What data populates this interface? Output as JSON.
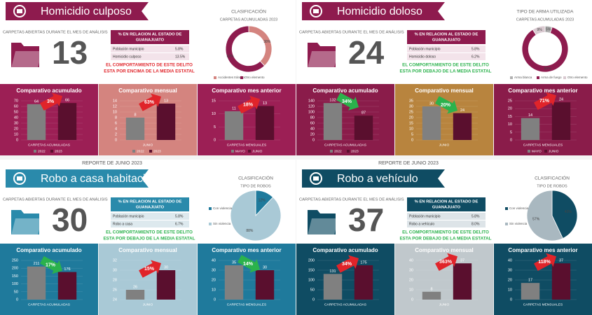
{
  "report_label": "REPORTE DE JUNIO 2023",
  "sections": [
    {
      "title": "Homicidio culposo",
      "theme_color": "#8e1b4e",
      "open_label": "CARPETAS ABIERTAS DURANTE EL MES DE ANÁLISIS",
      "count": 13,
      "table": {
        "header": [
          "% EN RELACION AL ESTADO DE",
          "GUANAJUATO"
        ],
        "rows": [
          [
            "Población municipio",
            "5.8%"
          ],
          [
            "Homicidio culposo",
            "13.5%"
          ]
        ],
        "row_color": "#f3e3ea"
      },
      "statement": [
        "EL COMPORTAMIENTO DE ESTE DELITO",
        "ESTA POR ENCIMA DE LA MEDIA ESTATAL"
      ],
      "statement_color": "#e0242a",
      "pie": {
        "type": "pie",
        "donut": true,
        "title": "CLASIFICACIÓN",
        "subtitle": "CARPETAS ACUMULADAS 2023",
        "categories": [
          "Accidentes tránsito",
          "Otro elemento"
        ],
        "values": [
          38,
          62
        ],
        "value_labels": [
          "38%",
          "62%"
        ],
        "colors": [
          "#d4847f",
          "#8e1b4e"
        ],
        "legend": "bottom"
      },
      "bars": [
        {
          "type": "bar",
          "title": "Comparativo acumulado",
          "panel_color": "#9c1f55",
          "categories": [
            "2022",
            "2023"
          ],
          "values": [
            64,
            66
          ],
          "colors": [
            "#808080",
            "#5a0f2e"
          ],
          "ylim": [
            0,
            70
          ],
          "yticks": [
            0,
            10,
            20,
            30,
            40,
            50,
            60,
            70
          ],
          "xlabel": "CARPETAS ACUMULADAS",
          "annotation": "3%",
          "annotation_color": "#e0242a"
        },
        {
          "type": "bar",
          "title": "Comparativo mensual",
          "panel_color": "#d4847f",
          "categories": [
            "2022",
            "2023"
          ],
          "values": [
            8,
            13
          ],
          "colors": [
            "#808080",
            "#5a0f2e"
          ],
          "ylim": [
            0,
            14
          ],
          "yticks": [
            0,
            2,
            4,
            6,
            8,
            10,
            12,
            14
          ],
          "xlabel": "JUNIO",
          "annotation": "63%",
          "annotation_color": "#e0242a"
        },
        {
          "type": "bar",
          "title": "Comparativo mes anterior",
          "panel_color": "#9c1f55",
          "categories": [
            "MAYO",
            "JUNIO"
          ],
          "values": [
            11,
            13
          ],
          "colors": [
            "#808080",
            "#5a0f2e"
          ],
          "ylim": [
            0,
            15
          ],
          "yticks": [
            0,
            5,
            10,
            15
          ],
          "xlabel": "CARPETAS MENSUALES",
          "annotation": "18%",
          "annotation_color": "#e0242a"
        }
      ]
    },
    {
      "title": "Homicidio doloso",
      "theme_color": "#8e1b4e",
      "open_label": "CARPETAS ABIERTAS DURANTE EL MES DE ANÁLISIS",
      "count": 24,
      "table": {
        "header": [
          "% EN RELACION AL ESTADO DE",
          "GUANAJUATO"
        ],
        "rows": [
          [
            "Población municipio",
            "5.8%"
          ],
          [
            "Homicidio doloso",
            "6.2%"
          ]
        ],
        "row_color": "#f3e3ea"
      },
      "statement": [
        "EL COMPORTAMIENTO DE ESTE DELITO",
        "ESTA POR DEBAJO DE LA MEDIA ESTATAL"
      ],
      "statement_color": "#2bb24c",
      "pie": {
        "type": "pie",
        "donut": true,
        "title": "TIPO DE ARMA UTILIZADA",
        "subtitle": "CARPETAS ACUMULADAS 2023",
        "categories": [
          "Arma blanca",
          "Arma de fuego",
          "Otro elemento"
        ],
        "values": [
          5,
          86,
          9
        ],
        "value_labels": [
          "5%",
          "86%",
          "9%"
        ],
        "colors": [
          "#b0b0b0",
          "#8e1b4e",
          "#d9c9d0"
        ],
        "legend": "bottom"
      },
      "bars": [
        {
          "type": "bar",
          "title": "Comparativo acumulado",
          "panel_color": "#8a1c4a",
          "categories": [
            "2022",
            "2023"
          ],
          "values": [
            132,
            87
          ],
          "colors": [
            "#808080",
            "#5a0f2e"
          ],
          "ylim": [
            0,
            140
          ],
          "yticks": [
            0,
            20,
            40,
            60,
            80,
            100,
            120,
            140
          ],
          "xlabel": "CARPETAS ACUMULADAS",
          "annotation": "34%",
          "annotation_color": "#2bb24c"
        },
        {
          "type": "bar",
          "title": "Comparativo mensual",
          "panel_color": "#b8843e",
          "values": [
            30,
            24
          ],
          "colors": [
            "#808080",
            "#5a0f2e"
          ],
          "ylim": [
            0,
            35
          ],
          "yticks": [
            0,
            5,
            10,
            15,
            20,
            25,
            30,
            35
          ],
          "xlabel": "JUNIO",
          "annotation": "20%",
          "annotation_color": "#2bb24c"
        },
        {
          "type": "bar",
          "title": "Comparativo mes anterior",
          "panel_color": "#8a1c4a",
          "categories": [
            "MAYO",
            "JUNIO"
          ],
          "values": [
            14,
            24
          ],
          "colors": [
            "#808080",
            "#5a0f2e"
          ],
          "ylim": [
            0,
            25
          ],
          "yticks": [
            0,
            5,
            10,
            15,
            20,
            25
          ],
          "xlabel": "CARPETAS MENSUALES",
          "annotation": "71%",
          "annotation_color": "#e0242a"
        }
      ]
    },
    {
      "title": "Robo a casa habitación",
      "theme_color": "#2a8aab",
      "open_label": "CARPETAS ABIERTAS DURANTE EL MES DE ANÁLISIS",
      "count": 30,
      "table": {
        "header": [
          "% EN RELACION AL ESTADO DE",
          "GUANAJUATO"
        ],
        "rows": [
          [
            "Población municipio",
            "5.8%"
          ],
          [
            "Robo a casa",
            "6.7%"
          ]
        ],
        "row_color": "#dde9ee"
      },
      "statement": [
        "EL COMPORTAMIENTO DE ESTE DELITO",
        "ESTA POR DEBAJO DE LA MEDIA ESTATAL"
      ],
      "statement_color": "#2bb24c",
      "pie": {
        "type": "pie",
        "donut": false,
        "title": "CLASIFICACIÓN",
        "subtitle": "TIPO DE ROBOS",
        "categories": [
          "Con violencia",
          "Sin violencia"
        ],
        "values": [
          12,
          88
        ],
        "value_labels": [
          "12%",
          "88%"
        ],
        "colors": [
          "#1f7a9c",
          "#a9c9d6"
        ],
        "legend": "left"
      },
      "bars": [
        {
          "type": "bar",
          "title": "Comparativo acumulado",
          "panel_color": "#1f7a9c",
          "values": [
            211,
            176
          ],
          "colors": [
            "#808080",
            "#5a0f2e"
          ],
          "ylim": [
            0,
            250
          ],
          "yticks": [
            0,
            50,
            100,
            150,
            200,
            250
          ],
          "xlabel": "CARPETAS ACUMULADAS",
          "annotation": "17%",
          "annotation_color": "#2bb24c"
        },
        {
          "type": "bar",
          "title": "Comparativo mensual",
          "panel_color": "#a9c9d6",
          "values": [
            26,
            30
          ],
          "colors": [
            "#808080",
            "#5a0f2e"
          ],
          "ylim": [
            24,
            32
          ],
          "yticks": [
            24,
            26,
            28,
            30,
            32
          ],
          "xlabel": "JUNIO",
          "annotation": "15%",
          "annotation_color": "#e0242a"
        },
        {
          "type": "bar",
          "title": "Comparativo mes anterior",
          "panel_color": "#1f7a9c",
          "values": [
            35,
            30
          ],
          "colors": [
            "#808080",
            "#5a0f2e"
          ],
          "ylim": [
            0,
            40
          ],
          "yticks": [
            0,
            10,
            20,
            30,
            40
          ],
          "xlabel": "CARPETAS MENSUALES",
          "annotation": "14%",
          "annotation_color": "#2bb24c"
        }
      ]
    },
    {
      "title": "Robo a vehículo",
      "theme_color": "#0f4c63",
      "open_label": "CARPETAS ABIERTAS DURANTE EL MES DE ANÁLISIS",
      "count": 37,
      "table": {
        "header": [
          "% EN RELACION AL ESTADO DE",
          "GUANAJUATO"
        ],
        "rows": [
          [
            "Población municipio",
            "5.8%"
          ],
          [
            "Robo a vehículo",
            "8.0%"
          ]
        ],
        "row_color": "#dde4e8"
      },
      "statement": [
        "EL COMPORTAMIENTO DE ESTE DELITO",
        "ESTA POR DEBAJO DE LA MEDIA ESTATAL"
      ],
      "statement_color": "#2bb24c",
      "pie": {
        "type": "pie",
        "donut": false,
        "title": "CLASIFICACIÓN",
        "subtitle": "TIPO DE ROBOS",
        "categories": [
          "Con violencia",
          "Sin violencia"
        ],
        "values": [
          43,
          57
        ],
        "value_labels": [
          "43%",
          "57%"
        ],
        "colors": [
          "#0f4c63",
          "#a9b8c0"
        ],
        "legend": "left"
      },
      "bars": [
        {
          "type": "bar",
          "title": "Comparativo acumulado",
          "panel_color": "#0f4c63",
          "values": [
            131,
            175
          ],
          "colors": [
            "#808080",
            "#5a0f2e"
          ],
          "ylim": [
            0,
            200
          ],
          "yticks": [
            0,
            50,
            100,
            150,
            200
          ],
          "xlabel": "CARPETAS ACUMULADAS",
          "annotation": "34%",
          "annotation_color": "#e0242a"
        },
        {
          "type": "bar",
          "title": "Comparativo mensual",
          "panel_color": "#c0c8cc",
          "values": [
            8,
            37
          ],
          "colors": [
            "#808080",
            "#5a0f2e"
          ],
          "ylim": [
            0,
            40
          ],
          "yticks": [
            0,
            10,
            20,
            30,
            40
          ],
          "xlabel": "JUNIO",
          "annotation": "363%",
          "annotation_color": "#e0242a"
        },
        {
          "type": "bar",
          "title": "Comparativo mes anterior",
          "panel_color": "#0f4c63",
          "values": [
            17,
            37
          ],
          "colors": [
            "#808080",
            "#5a0f2e"
          ],
          "ylim": [
            0,
            40
          ],
          "yticks": [
            0,
            10,
            20,
            30,
            40
          ],
          "xlabel": "CARPETAS MENSUALES",
          "annotation": "118%",
          "annotation_color": "#e0242a"
        }
      ]
    }
  ]
}
